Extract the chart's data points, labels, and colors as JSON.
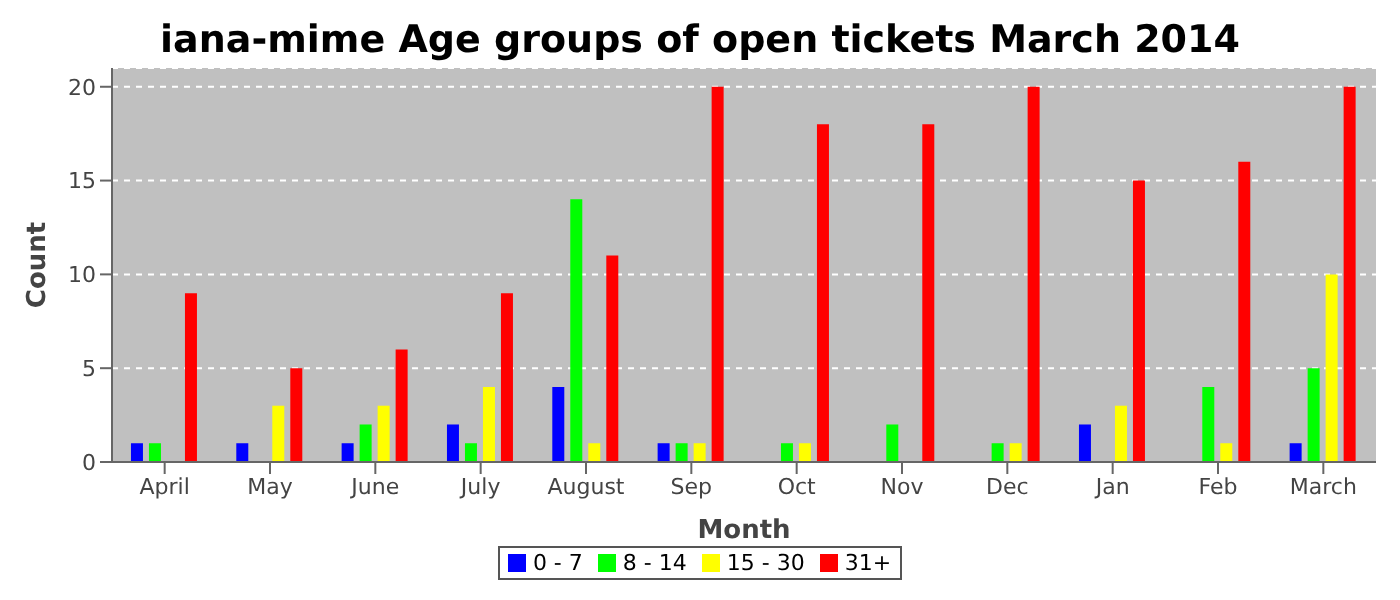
{
  "chart_data": {
    "type": "bar",
    "title": "iana-mime Age groups of open tickets March 2014",
    "xlabel": "Month",
    "ylabel": "Count",
    "categories": [
      "April",
      "May",
      "June",
      "July",
      "August",
      "Sep",
      "Oct",
      "Nov",
      "Dec",
      "Jan",
      "Feb",
      "March"
    ],
    "series": [
      {
        "name": "0 - 7",
        "color": "#0000ff",
        "values": [
          1,
          1,
          1,
          2,
          4,
          1,
          0,
          0,
          0,
          2,
          0,
          1
        ]
      },
      {
        "name": "8 - 14",
        "color": "#00ff00",
        "values": [
          1,
          0,
          2,
          1,
          14,
          1,
          1,
          2,
          1,
          0,
          4,
          5
        ]
      },
      {
        "name": "15 - 30",
        "color": "#ffff00",
        "values": [
          0,
          3,
          3,
          4,
          1,
          1,
          1,
          0,
          1,
          3,
          1,
          10
        ]
      },
      {
        "name": "31+",
        "color": "#ff0000",
        "values": [
          9,
          5,
          6,
          9,
          11,
          20,
          18,
          18,
          20,
          15,
          16,
          20
        ]
      }
    ],
    "ylim": [
      0,
      21
    ],
    "yticks": [
      0,
      5,
      10,
      15,
      20
    ],
    "grid": "y",
    "legend": "bottom"
  }
}
